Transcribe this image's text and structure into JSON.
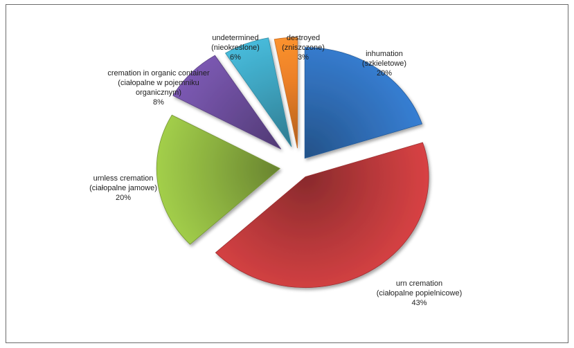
{
  "chart_data": {
    "type": "pie",
    "title": "",
    "exploded": true,
    "style": "3d-shaded",
    "slices": [
      {
        "label": "inhumation",
        "label_pl": "(szkieletowe)",
        "value": 20,
        "percent_text": "20%",
        "color": "#2f6cb4"
      },
      {
        "label": "urn cremation",
        "label_pl": "(ciałopalne popielnicowe)",
        "value": 43,
        "percent_text": "43%",
        "color": "#b7383a"
      },
      {
        "label": "urnless cremation",
        "label_pl": "(ciałopalne jamowe)",
        "value": 20,
        "percent_text": "20%",
        "color": "#8aaf3f"
      },
      {
        "label": "cremation in organic container",
        "label_pl": "(ciałopalne w pojemniku organicznym)",
        "label_pl_lines": [
          "(ciałopalne w pojemniku",
          "organicznym)"
        ],
        "value": 8,
        "percent_text": "8%",
        "color": "#6a4c99"
      },
      {
        "label": "undetermined",
        "label_pl": "(nieokreślone)",
        "value": 6,
        "percent_text": "6%",
        "color": "#3ea3bf"
      },
      {
        "label": "destroyed",
        "label_pl": "(zniszczone)",
        "value": 3,
        "percent_text": "3%",
        "color": "#ec8028"
      }
    ]
  }
}
